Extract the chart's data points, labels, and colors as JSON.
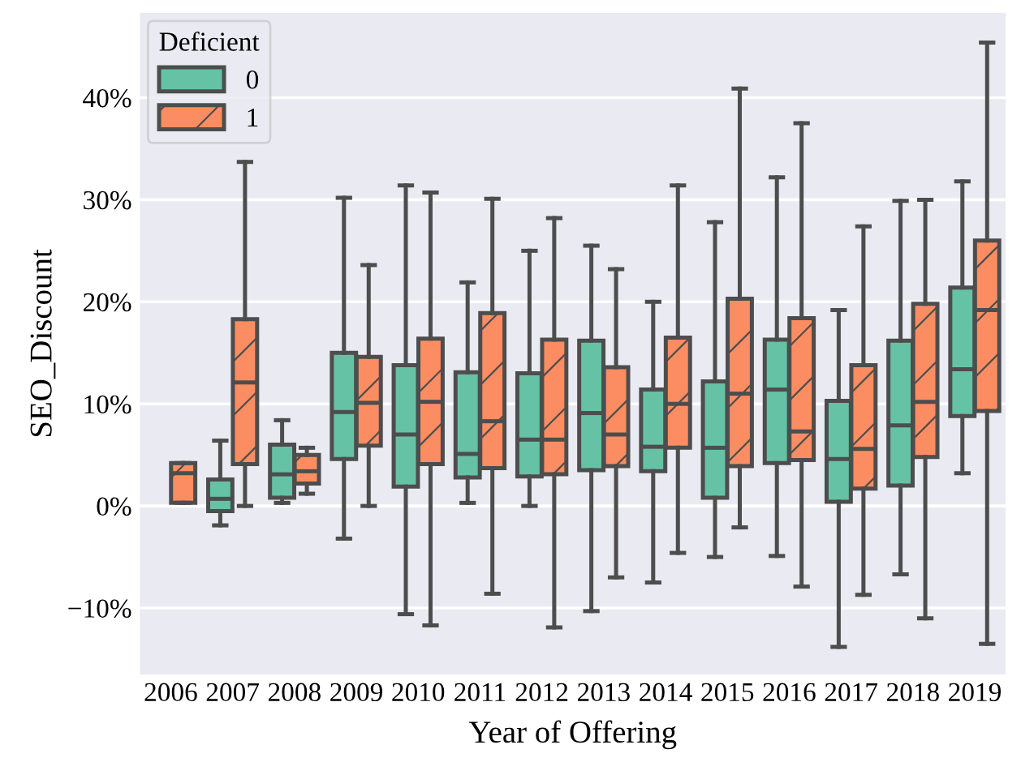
{
  "chart_data": {
    "type": "box",
    "xlabel": "Year of Offering",
    "ylabel": "SEO_Discount",
    "legend_title": "Deficient",
    "legend": "top left",
    "grid": "y",
    "categories": [
      "2006",
      "2007",
      "2008",
      "2009",
      "2010",
      "2011",
      "2012",
      "2013",
      "2014",
      "2015",
      "2016",
      "2017",
      "2018",
      "2019"
    ],
    "ylim": [
      -16.5,
      48.3
    ],
    "yticks": [
      {
        "value": -10,
        "label": "−10%"
      },
      {
        "value": 0,
        "label": "0%"
      },
      {
        "value": 10,
        "label": "10%"
      },
      {
        "value": 20,
        "label": "20%"
      },
      {
        "value": 30,
        "label": "30%"
      },
      {
        "value": 40,
        "label": "40%"
      }
    ],
    "series": [
      {
        "name": "0",
        "color": "#66c2a5",
        "boxes": [
          null,
          {
            "low": -1.9,
            "q1": -0.5,
            "median": 0.7,
            "q3": 2.6,
            "high": 6.4
          },
          {
            "low": 0.3,
            "q1": 0.8,
            "median": 3.1,
            "q3": 6.0,
            "high": 8.4
          },
          {
            "low": -3.2,
            "q1": 4.6,
            "median": 9.2,
            "q3": 15.0,
            "high": 30.2
          },
          {
            "low": -10.6,
            "q1": 1.9,
            "median": 7.0,
            "q3": 13.8,
            "high": 31.4
          },
          {
            "low": 0.3,
            "q1": 2.8,
            "median": 5.1,
            "q3": 13.1,
            "high": 21.9
          },
          {
            "low": 0,
            "q1": 2.9,
            "median": 6.5,
            "q3": 13.0,
            "high": 25.0
          },
          {
            "low": -10.3,
            "q1": 3.5,
            "median": 9.1,
            "q3": 16.2,
            "high": 25.5
          },
          {
            "low": -7.5,
            "q1": 3.4,
            "median": 5.8,
            "q3": 11.4,
            "high": 20.0
          },
          {
            "low": -5.0,
            "q1": 0.8,
            "median": 5.7,
            "q3": 12.2,
            "high": 27.8
          },
          {
            "low": -4.9,
            "q1": 4.2,
            "median": 11.4,
            "q3": 16.3,
            "high": 32.2
          },
          {
            "low": -13.8,
            "q1": 0.4,
            "median": 4.6,
            "q3": 10.3,
            "high": 19.2
          },
          {
            "low": -6.7,
            "q1": 2.0,
            "median": 7.9,
            "q3": 16.2,
            "high": 29.9
          },
          {
            "low": 3.2,
            "q1": 8.8,
            "median": 13.4,
            "q3": 21.4,
            "high": 31.8
          }
        ]
      },
      {
        "name": "1",
        "color": "#fc8d62",
        "boxes": [
          {
            "low": 0.3,
            "q1": 0.3,
            "median": 3.2,
            "q3": 4.2,
            "high": 4.2
          },
          {
            "low": 0,
            "q1": 4.1,
            "median": 12.1,
            "q3": 18.3,
            "high": 33.7
          },
          {
            "low": 1.2,
            "q1": 2.2,
            "median": 3.4,
            "q3": 5.0,
            "high": 5.7
          },
          {
            "low": 0,
            "q1": 5.9,
            "median": 10.1,
            "q3": 14.6,
            "high": 23.6
          },
          {
            "low": -11.7,
            "q1": 4.1,
            "median": 10.2,
            "q3": 16.4,
            "high": 30.7
          },
          {
            "low": -8.6,
            "q1": 3.7,
            "median": 8.3,
            "q3": 18.9,
            "high": 30.1
          },
          {
            "low": -11.9,
            "q1": 3.1,
            "median": 6.5,
            "q3": 16.3,
            "high": 28.2
          },
          {
            "low": -7.0,
            "q1": 3.9,
            "median": 7.0,
            "q3": 13.6,
            "high": 23.2
          },
          {
            "low": -4.6,
            "q1": 5.7,
            "median": 10.0,
            "q3": 16.5,
            "high": 31.4
          },
          {
            "low": -2.1,
            "q1": 3.9,
            "median": 11.0,
            "q3": 20.3,
            "high": 40.9
          },
          {
            "low": -7.9,
            "q1": 4.5,
            "median": 7.3,
            "q3": 18.4,
            "high": 37.5
          },
          {
            "low": -8.7,
            "q1": 1.7,
            "median": 5.6,
            "q3": 13.8,
            "high": 27.4
          },
          {
            "low": -11.0,
            "q1": 4.8,
            "median": 10.2,
            "q3": 19.8,
            "high": 30.0
          },
          {
            "low": -13.5,
            "q1": 9.3,
            "median": 19.2,
            "q3": 26.0,
            "high": 45.4
          }
        ]
      }
    ]
  }
}
